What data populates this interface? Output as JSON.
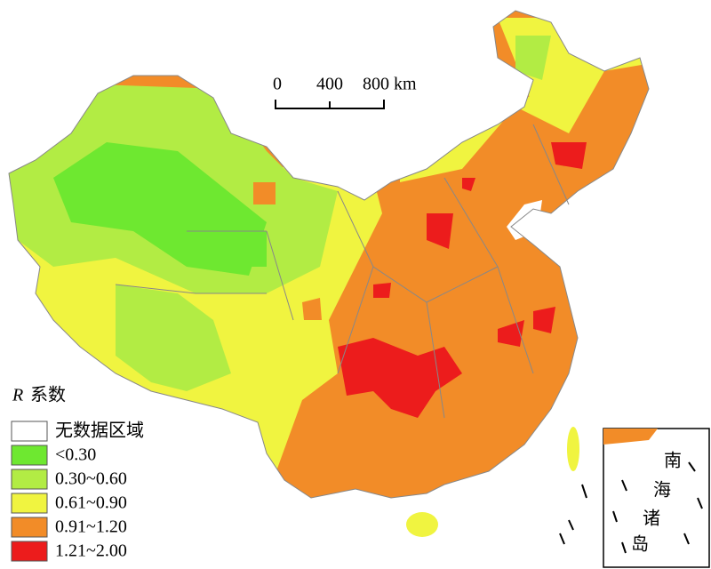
{
  "legend": {
    "symbol": "R",
    "title": "系数",
    "items": [
      {
        "label": "无数据区域",
        "color": "#ffffff"
      },
      {
        "label": "<0.30",
        "color": "#6ee830"
      },
      {
        "label": "0.30~0.60",
        "color": "#b2ec44"
      },
      {
        "label": "0.61~0.90",
        "color": "#f0f440"
      },
      {
        "label": "0.91~1.20",
        "color": "#f28c28"
      },
      {
        "label": "1.21~2.00",
        "color": "#ec1c1c"
      }
    ]
  },
  "scale_bar": {
    "labels": [
      "0",
      "400",
      "800 km"
    ]
  },
  "inset": {
    "label_chars": [
      "南",
      "海",
      "诸",
      "岛"
    ]
  }
}
